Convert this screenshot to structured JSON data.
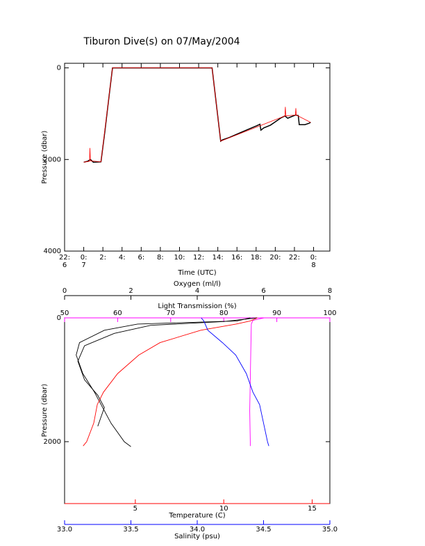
{
  "chart_data": [
    {
      "type": "line",
      "title": "Tiburon Dive(s) on 07/May/2004",
      "ylabel": "Pressure (dbar)",
      "xlabel": "Time (UTC)",
      "xlim": [
        22,
        49.7
      ],
      "ylim": [
        4000,
        -100
      ],
      "xticks": [
        {
          "value": 22,
          "label": "22:"
        },
        {
          "value": 24,
          "label": "0:"
        },
        {
          "value": 26,
          "label": "2:"
        },
        {
          "value": 28,
          "label": "4:"
        },
        {
          "value": 30,
          "label": "6:"
        },
        {
          "value": 32,
          "label": "8:"
        },
        {
          "value": 34,
          "label": "10:"
        },
        {
          "value": 36,
          "label": "12:"
        },
        {
          "value": 38,
          "label": "14:"
        },
        {
          "value": 40,
          "label": "16:"
        },
        {
          "value": 42,
          "label": "18:"
        },
        {
          "value": 44,
          "label": "20:"
        },
        {
          "value": 46,
          "label": "22:"
        },
        {
          "value": 48,
          "label": "0:"
        }
      ],
      "xtick_dates": [
        {
          "value": 22,
          "label": "6"
        },
        {
          "value": 24,
          "label": "7"
        },
        {
          "value": 48,
          "label": "8"
        }
      ],
      "yticks": [
        0,
        2000,
        4000
      ],
      "series": [
        {
          "color": "#000000",
          "x": [
            24.0,
            24.4,
            24.7,
            25.0,
            25.8,
            26.2,
            26.6,
            27.0,
            30,
            34,
            37.4,
            38.3,
            38.5,
            39.2,
            40.3,
            41.3,
            42.1,
            42.4,
            42.5,
            42.8,
            43.5,
            44.2,
            44.6,
            45.0,
            45.3,
            46.1,
            46.4,
            46.5,
            47.1,
            47.5,
            47.7
          ],
          "values": [
            2060,
            2040,
            2000,
            2060,
            2050,
            1400,
            700,
            0,
            0,
            0,
            0,
            1600,
            1570,
            1520,
            1420,
            1330,
            1260,
            1230,
            1360,
            1310,
            1250,
            1150,
            1090,
            1050,
            1100,
            1030,
            1040,
            1240,
            1240,
            1210,
            1190
          ]
        },
        {
          "color": "#ff0000",
          "x": [
            24.0,
            24.6,
            24.65,
            24.7,
            25.8,
            27.0,
            37.4,
            38.3,
            45.0,
            45.05,
            45.1,
            46.1,
            46.15,
            46.2,
            47.7
          ],
          "values": [
            2060,
            2040,
            1750,
            2030,
            2050,
            0,
            0,
            1600,
            1050,
            850,
            1050,
            1030,
            880,
            1030,
            1190
          ]
        }
      ]
    },
    {
      "type": "profile",
      "ylabel": "Pressure (dbar)",
      "ylim": [
        0,
        3000
      ],
      "yticks": [
        0,
        2000
      ],
      "x_axes": [
        {
          "label": "Oxygen (ml/l)",
          "color": "#000000",
          "lim": [
            0,
            8
          ],
          "ticks": [
            0,
            2,
            4,
            6,
            8
          ]
        },
        {
          "label": "Light Transmission (%)",
          "color": "#ff00ff",
          "lim": [
            50,
            100
          ],
          "ticks": [
            50,
            60,
            70,
            80,
            90,
            100
          ]
        },
        {
          "label": "Temperature (C)",
          "color": "#ff0000",
          "lim": [
            1,
            16
          ],
          "ticks": [
            5,
            10,
            15
          ]
        },
        {
          "label": "Salinity (psu)",
          "color": "#0000ff",
          "lim": [
            33,
            35
          ],
          "ticks": [
            {
              "value": 33,
              "label": "33.0"
            },
            {
              "value": 33.5,
              "label": "33.5"
            },
            {
              "value": 34,
              "label": "34.0"
            },
            {
              "value": 34.5,
              "label": "34.5"
            },
            {
              "value": 35,
              "label": "35.0"
            }
          ]
        }
      ],
      "series": [
        {
          "color": "#000000",
          "x_axis": 0,
          "pressure": [
            0,
            50,
            100,
            200,
            400,
            600,
            900,
            1200,
            1400,
            1700,
            2000,
            2080
          ],
          "values": [
            5.6,
            5.2,
            2.2,
            1.2,
            0.45,
            0.35,
            0.55,
            0.9,
            1.1,
            1.4,
            1.8,
            2.0
          ]
        },
        {
          "color": "#000000",
          "x_axis": 0,
          "pressure": [
            0,
            60,
            120,
            250,
            450,
            700,
            1000,
            1250,
            1450,
            1600,
            1750
          ],
          "values": [
            5.8,
            4.8,
            2.6,
            1.5,
            0.6,
            0.4,
            0.6,
            1.0,
            1.2,
            1.1,
            1.0
          ]
        },
        {
          "color": "#ff00ff",
          "x_axis": 1,
          "pressure": [
            0,
            20,
            40,
            100,
            500,
            1000,
            1500,
            2000,
            2070
          ],
          "values": [
            87.6,
            86.5,
            85.5,
            85.2,
            85.1,
            85.0,
            84.9,
            85.0,
            85.0
          ]
        },
        {
          "color": "#ff0000",
          "x_axis": 2,
          "pressure": [
            0,
            50,
            100,
            200,
            400,
            600,
            900,
            1200,
            1400,
            1700,
            2000,
            2070
          ],
          "values": [
            11.9,
            11.5,
            10.7,
            8.7,
            6.4,
            5.2,
            4.0,
            3.2,
            2.85,
            2.65,
            2.25,
            2.05
          ]
        },
        {
          "color": "#0000ff",
          "x_axis": 3,
          "pressure": [
            0,
            50,
            200,
            400,
            600,
            900,
            1200,
            1400,
            1700,
            2000,
            2070
          ],
          "values": [
            34.03,
            34.05,
            34.08,
            34.19,
            34.29,
            34.37,
            34.42,
            34.47,
            34.5,
            34.53,
            34.54
          ]
        }
      ]
    }
  ]
}
